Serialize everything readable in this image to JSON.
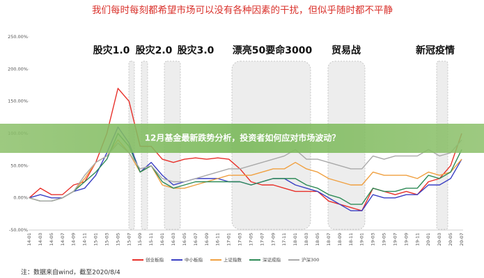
{
  "chart_data": {
    "type": "line",
    "title": "我们每时每刻都希望市场可以没有各种因素的干扰，但似乎随时都不平静",
    "annotations": [
      "股灾1.0",
      "股灾2.0",
      "股灾3.0",
      "漂亮50要命3000",
      "贸易战",
      "新冠疫情"
    ],
    "note": "注：数据来自wind，截至2020/8/4",
    "categories": [
      "14-01",
      "14-03",
      "14-05",
      "14-07",
      "14-09",
      "14-11",
      "15-01",
      "15-03",
      "15-05",
      "15-07",
      "15-09",
      "15-11",
      "16-01",
      "16-03",
      "16-05",
      "16-07",
      "16-09",
      "16-11",
      "17-01",
      "17-03",
      "17-05",
      "17-07",
      "17-09",
      "17-11",
      "18-01",
      "18-03",
      "18-05",
      "18-07",
      "18-09",
      "18-11",
      "19-01",
      "19-03",
      "19-05",
      "19-07",
      "19-09",
      "19-11",
      "20-01",
      "20-03",
      "20-05",
      "20-07"
    ],
    "series": [
      {
        "name": "创业板指",
        "color": "#e8302a",
        "values": [
          0,
          15,
          5,
          5,
          20,
          25,
          55,
          100,
          170,
          150,
          80,
          80,
          60,
          55,
          60,
          62,
          60,
          62,
          60,
          45,
          25,
          20,
          20,
          15,
          10,
          10,
          10,
          -5,
          -10,
          -15,
          -20,
          15,
          10,
          5,
          10,
          5,
          25,
          30,
          50,
          100
        ]
      },
      {
        "name": "中小板指",
        "color": "#3a3fc4",
        "values": [
          0,
          5,
          0,
          0,
          10,
          15,
          35,
          70,
          110,
          85,
          40,
          55,
          35,
          20,
          25,
          30,
          30,
          30,
          25,
          25,
          20,
          25,
          30,
          30,
          20,
          15,
          10,
          0,
          -10,
          -20,
          -20,
          5,
          0,
          0,
          5,
          5,
          20,
          20,
          30,
          60
        ]
      },
      {
        "name": "上证指数",
        "color": "#f0a040",
        "values": [
          0,
          -5,
          -5,
          0,
          10,
          30,
          55,
          65,
          90,
          70,
          40,
          50,
          20,
          15,
          15,
          20,
          25,
          30,
          35,
          35,
          35,
          40,
          45,
          45,
          55,
          45,
          40,
          30,
          25,
          20,
          20,
          40,
          35,
          35,
          35,
          30,
          40,
          35,
          40,
          60
        ]
      },
      {
        "name": "深证成指",
        "color": "#2e8b57",
        "values": [
          0,
          -5,
          -5,
          0,
          10,
          25,
          40,
          60,
          100,
          80,
          40,
          50,
          25,
          15,
          20,
          25,
          25,
          25,
          25,
          25,
          20,
          25,
          30,
          30,
          30,
          20,
          15,
          5,
          0,
          -10,
          -10,
          15,
          10,
          10,
          15,
          15,
          35,
          30,
          40,
          75
        ]
      },
      {
        "name": "沪深300",
        "color": "#a9a9a9",
        "values": [
          0,
          -5,
          -5,
          0,
          10,
          35,
          55,
          65,
          85,
          70,
          45,
          50,
          30,
          25,
          25,
          30,
          35,
          40,
          45,
          45,
          50,
          55,
          60,
          65,
          75,
          60,
          60,
          55,
          50,
          45,
          45,
          65,
          60,
          65,
          65,
          65,
          75,
          65,
          70,
          90
        ]
      }
    ],
    "ylim": [
      -50,
      250
    ],
    "yticks": [
      {
        "value": -50,
        "label": "-50.00%"
      },
      {
        "value": 0,
        "label": "0.00%"
      },
      {
        "value": 50,
        "label": "50.00%"
      },
      {
        "value": 100,
        "label": "100.00%"
      },
      {
        "value": 150,
        "label": "150.00%"
      },
      {
        "value": 200,
        "label": "200.00%"
      },
      {
        "value": 250,
        "label": "250.00%"
      }
    ],
    "grid": false
  },
  "banner": {
    "title": "12月基金最新跌势分析，投资者如何应对市场波动？"
  }
}
